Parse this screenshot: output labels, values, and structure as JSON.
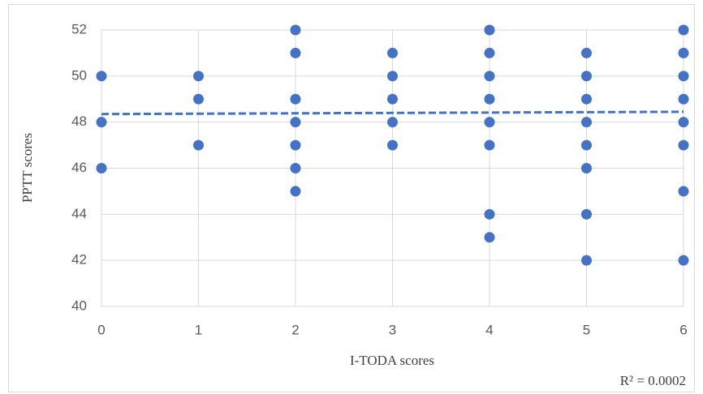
{
  "chart_data": {
    "type": "scatter",
    "x_label": "I-TODA scores",
    "y_label": "PPTT scores",
    "annotation": "R² = 0.0002",
    "color": "#4472c4",
    "grid": true,
    "xlim": [
      0,
      6
    ],
    "xticks": [
      0,
      1,
      2,
      3,
      4,
      5,
      6
    ],
    "ylim": [
      40,
      52
    ],
    "yticks": [
      40,
      42,
      44,
      46,
      48,
      50,
      52
    ],
    "series": [
      {
        "x": [
          0,
          0,
          0,
          1,
          1,
          1,
          2,
          2,
          2,
          2,
          2,
          2,
          2,
          3,
          3,
          3,
          3,
          3,
          4,
          4,
          4,
          4,
          4,
          4,
          4,
          4,
          5,
          5,
          5,
          5,
          5,
          5,
          5,
          5,
          6,
          6,
          6,
          6,
          6,
          6,
          6,
          6
        ],
        "values": [
          50,
          48,
          46,
          50,
          49,
          47,
          52,
          51,
          49,
          48,
          47,
          46,
          45,
          51,
          50,
          49,
          48,
          47,
          52,
          51,
          50,
          49,
          48,
          47,
          44,
          43,
          51,
          50,
          49,
          48,
          47,
          46,
          44,
          42,
          52,
          51,
          50,
          49,
          48,
          47,
          45,
          42
        ]
      }
    ],
    "trend_line": {
      "x": [
        0,
        6
      ],
      "values": [
        48.35,
        48.45
      ]
    }
  }
}
